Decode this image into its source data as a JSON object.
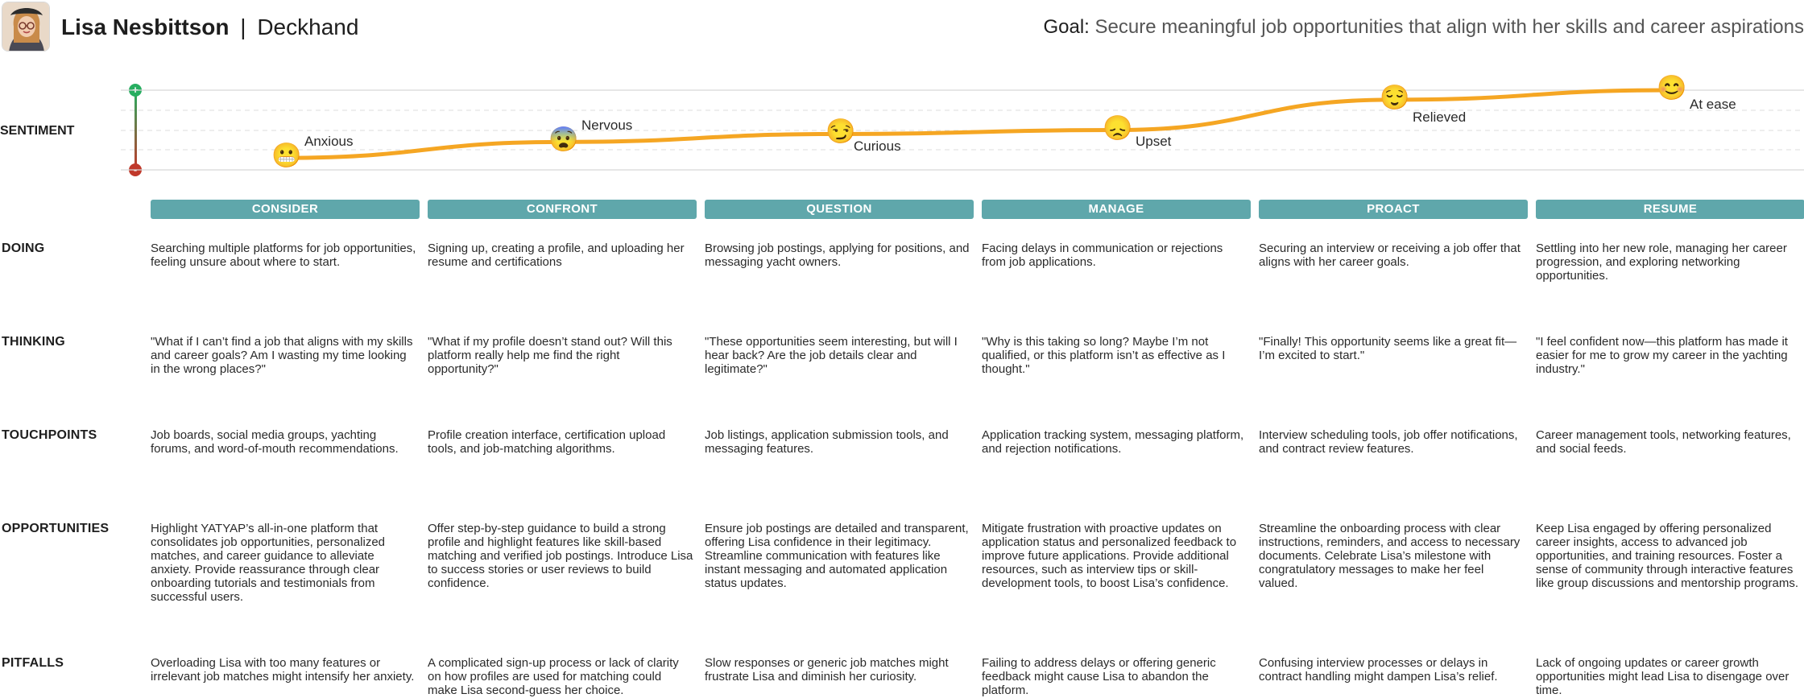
{
  "persona": {
    "name": "Lisa Nesbittson",
    "separator": "|",
    "role": "Deckhand"
  },
  "goal": {
    "label": "Goal:",
    "text": "Secure meaningful job opportunities that align with her skills and career aspirations"
  },
  "sentiment": {
    "row_label": "SENTIMENT",
    "plus_symbol": "+",
    "minus_symbol": "-",
    "line_color": "#f5a623",
    "points": [
      {
        "emoji": "😬",
        "label": "Anxious",
        "level": 0.15
      },
      {
        "emoji": "😨",
        "label": "Nervous",
        "level": 0.35
      },
      {
        "emoji": "😏",
        "label": "Curious",
        "level": 0.45
      },
      {
        "emoji": "😞",
        "label": "Upset",
        "level": 0.5
      },
      {
        "emoji": "😌",
        "label": "Relieved",
        "level": 0.88
      },
      {
        "emoji": "😊",
        "label": "At ease",
        "level": 1.0
      }
    ]
  },
  "stages": [
    "CONSIDER",
    "CONFRONT",
    "QUESTION",
    "MANAGE",
    "PROACT",
    "RESUME"
  ],
  "stage_color": "#5fa7ab",
  "rows": {
    "doing": {
      "label": "DOING",
      "cells": [
        "Searching multiple platforms for job opportunities, feeling unsure about where to start.",
        "Signing up, creating a profile, and uploading her resume and certifications",
        "Browsing job postings, applying for positions, and messaging yacht owners.",
        "Facing delays in communication or rejections from job applications.",
        "Securing an interview or receiving a job offer that aligns with her career goals.",
        "Settling into her new role, managing her career progression, and exploring networking opportunities."
      ]
    },
    "thinking": {
      "label": "THINKING",
      "cells": [
        "\"What if I can’t find a job that aligns with my skills and career goals? Am I wasting my time looking in the wrong places?\"",
        "\"What if my profile doesn’t stand out? Will this platform really help me find the right opportunity?\"",
        "\"These opportunities seem interesting, but will I hear back? Are the job details clear and legitimate?\"",
        "\"Why is this taking so long? Maybe I’m not qualified, or this platform isn’t as effective as I thought.\"",
        "\"Finally! This opportunity seems like a great fit—I’m excited to start.\"",
        "\"I feel confident now—this platform has made it easier for me to grow my career in the yachting industry.\""
      ]
    },
    "touchpoints": {
      "label": "TOUCHPOINTS",
      "cells": [
        "Job boards, social media groups, yachting forums, and word-of-mouth recommendations.",
        "Profile creation interface, certification upload tools, and job-matching algorithms.",
        "Job listings, application submission tools, and messaging features.",
        "Application tracking system, messaging platform, and rejection notifications.",
        "Interview scheduling tools, job offer notifications, and contract review features.",
        "Career management tools, networking features, and social feeds."
      ]
    },
    "opportunities": {
      "label": "OPPORTUNITIES",
      "cells": [
        "Highlight YATYAP’s all-in-one platform that consolidates job opportunities, personalized matches, and career guidance to alleviate anxiety. Provide reassurance through clear onboarding tutorials and testimonials from successful users.",
        "Offer step-by-step guidance to build a strong profile and highlight features like skill-based matching and verified job postings. Introduce Lisa to success stories or user reviews to build confidence.",
        "Ensure job postings are detailed and transparent, offering Lisa confidence in their legitimacy. Streamline communication with features like instant messaging and automated application status updates.",
        "Mitigate frustration with proactive updates on application status and personalized feedback to improve future applications. Provide additional resources, such as interview tips or skill-development tools, to boost Lisa’s confidence.",
        "Streamline the onboarding process with clear instructions, reminders, and access to necessary documents. Celebrate Lisa’s milestone with congratulatory messages to make her feel valued.",
        "Keep Lisa engaged by offering personalized career insights, access to advanced job opportunities, and training resources. Foster a sense of community through interactive features like group discussions and mentorship programs."
      ]
    },
    "pitfalls": {
      "label": "PITFALLS",
      "cells": [
        "Overloading Lisa with too many features or irrelevant job matches might intensify her anxiety.",
        "A complicated sign-up process or lack of clarity on how profiles are used for matching could make Lisa second-guess her choice.",
        "Slow responses or generic job matches might frustrate Lisa and diminish her curiosity.",
        "Failing to address delays or offering generic feedback might cause Lisa to abandon the platform.",
        "Confusing interview processes or delays in contract handling might dampen Lisa’s relief.",
        "Lack of ongoing updates or career growth opportunities might lead Lisa to disengage over time."
      ]
    }
  }
}
